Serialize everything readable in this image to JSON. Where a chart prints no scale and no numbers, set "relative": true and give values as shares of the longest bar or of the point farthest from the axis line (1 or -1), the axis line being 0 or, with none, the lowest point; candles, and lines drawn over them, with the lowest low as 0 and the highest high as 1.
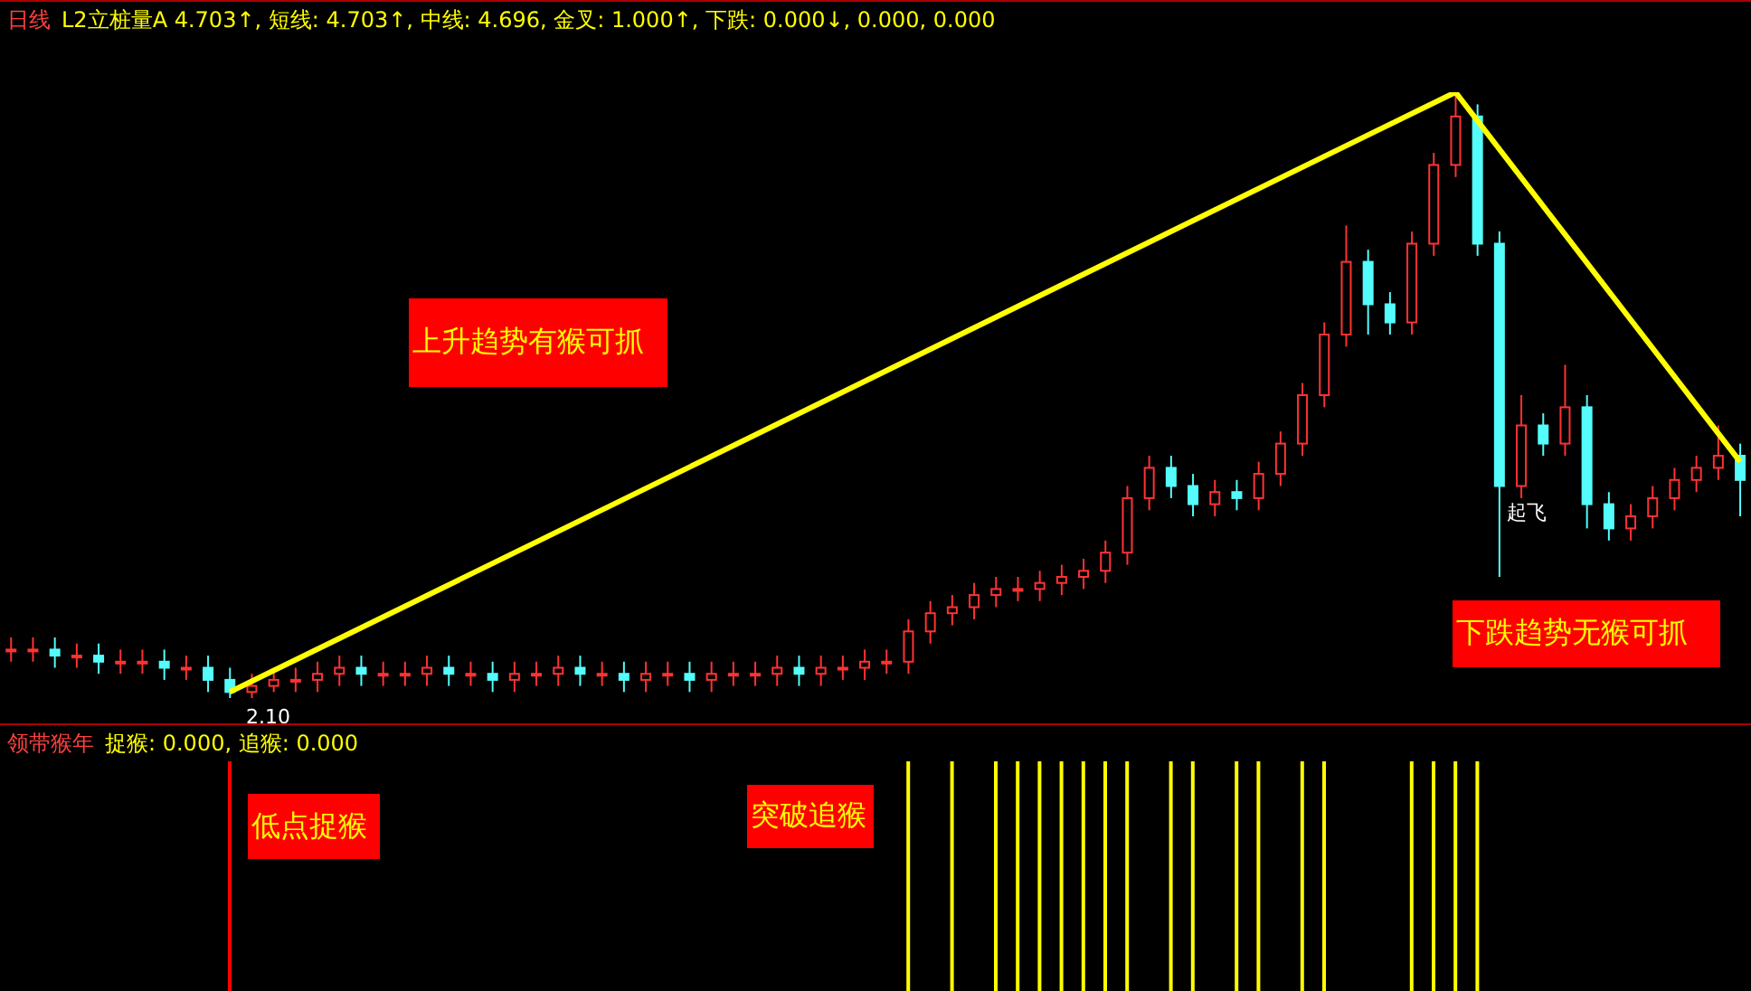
{
  "chart_data": [
    {
      "type": "candlestick",
      "relative": true,
      "title": "日线",
      "subtitle": "L2立桩量A 4.703↑, 短线: 4.703↑, 中线: 4.696, 金叉: 1.000↑, 下跌: 0.000↓, 0.000, 0.000",
      "annotations": [
        "上升趋势有猴可抓",
        "下跌趋势无猴可抓",
        "起飞",
        "2.10"
      ],
      "categories": [
        null,
        null,
        null,
        null,
        null,
        null,
        null,
        null,
        null,
        null,
        null,
        null,
        null,
        null,
        null,
        null,
        null,
        null,
        null,
        null,
        null,
        null,
        null,
        null,
        null,
        null,
        null,
        null,
        null,
        null,
        null,
        null,
        null,
        null,
        null,
        null,
        null,
        null,
        null,
        null,
        null,
        null,
        null,
        null,
        null,
        null,
        null,
        null,
        null,
        null,
        null,
        null,
        null,
        null,
        null,
        null,
        null,
        null,
        null,
        null,
        null,
        null,
        null,
        null,
        null,
        null,
        null,
        null,
        null,
        null,
        null,
        null,
        null,
        null,
        null,
        null,
        null,
        null,
        null,
        null
      ],
      "ohlc": [
        [
          0.08,
          0.1,
          0.06,
          0.08
        ],
        [
          0.08,
          0.1,
          0.06,
          0.08
        ],
        [
          0.08,
          0.1,
          0.05,
          0.07
        ],
        [
          0.07,
          0.09,
          0.05,
          0.07
        ],
        [
          0.07,
          0.09,
          0.04,
          0.06
        ],
        [
          0.06,
          0.08,
          0.04,
          0.06
        ],
        [
          0.06,
          0.08,
          0.04,
          0.06
        ],
        [
          0.06,
          0.08,
          0.03,
          0.05
        ],
        [
          0.05,
          0.07,
          0.03,
          0.05
        ],
        [
          0.05,
          0.07,
          0.01,
          0.03
        ],
        [
          0.03,
          0.05,
          0,
          0.01
        ],
        [
          0.01,
          0.04,
          0,
          0.02
        ],
        [
          0.02,
          0.05,
          0.01,
          0.03
        ],
        [
          0.03,
          0.05,
          0.01,
          0.03
        ],
        [
          0.03,
          0.06,
          0.01,
          0.04
        ],
        [
          0.04,
          0.07,
          0.02,
          0.05
        ],
        [
          0.05,
          0.07,
          0.02,
          0.04
        ],
        [
          0.04,
          0.06,
          0.02,
          0.04
        ],
        [
          0.04,
          0.06,
          0.02,
          0.04
        ],
        [
          0.04,
          0.07,
          0.02,
          0.05
        ],
        [
          0.05,
          0.07,
          0.02,
          0.04
        ],
        [
          0.04,
          0.06,
          0.02,
          0.04
        ],
        [
          0.04,
          0.06,
          0.01,
          0.03
        ],
        [
          0.03,
          0.06,
          0.01,
          0.04
        ],
        [
          0.04,
          0.06,
          0.02,
          0.04
        ],
        [
          0.04,
          0.07,
          0.02,
          0.05
        ],
        [
          0.05,
          0.07,
          0.02,
          0.04
        ],
        [
          0.04,
          0.06,
          0.02,
          0.04
        ],
        [
          0.04,
          0.06,
          0.01,
          0.03
        ],
        [
          0.03,
          0.06,
          0.01,
          0.04
        ],
        [
          0.04,
          0.06,
          0.02,
          0.04
        ],
        [
          0.04,
          0.06,
          0.01,
          0.03
        ],
        [
          0.03,
          0.06,
          0.01,
          0.04
        ],
        [
          0.04,
          0.06,
          0.02,
          0.04
        ],
        [
          0.04,
          0.06,
          0.02,
          0.04
        ],
        [
          0.04,
          0.07,
          0.02,
          0.05
        ],
        [
          0.05,
          0.07,
          0.02,
          0.04
        ],
        [
          0.04,
          0.07,
          0.02,
          0.05
        ],
        [
          0.05,
          0.07,
          0.03,
          0.05
        ],
        [
          0.05,
          0.08,
          0.03,
          0.06
        ],
        [
          0.06,
          0.08,
          0.04,
          0.06
        ],
        [
          0.06,
          0.13,
          0.04,
          0.11
        ],
        [
          0.11,
          0.16,
          0.09,
          0.14
        ],
        [
          0.14,
          0.17,
          0.12,
          0.15
        ],
        [
          0.15,
          0.19,
          0.13,
          0.17
        ],
        [
          0.17,
          0.2,
          0.15,
          0.18
        ],
        [
          0.18,
          0.2,
          0.16,
          0.18
        ],
        [
          0.18,
          0.21,
          0.16,
          0.19
        ],
        [
          0.19,
          0.22,
          0.17,
          0.2
        ],
        [
          0.2,
          0.23,
          0.18,
          0.21
        ],
        [
          0.21,
          0.26,
          0.19,
          0.24
        ],
        [
          0.24,
          0.35,
          0.22,
          0.33
        ],
        [
          0.33,
          0.4,
          0.31,
          0.38
        ],
        [
          0.38,
          0.4,
          0.33,
          0.35
        ],
        [
          0.35,
          0.37,
          0.3,
          0.32
        ],
        [
          0.32,
          0.36,
          0.3,
          0.34
        ],
        [
          0.34,
          0.36,
          0.31,
          0.33
        ],
        [
          0.33,
          0.39,
          0.31,
          0.37
        ],
        [
          0.37,
          0.44,
          0.35,
          0.42
        ],
        [
          0.42,
          0.52,
          0.4,
          0.5
        ],
        [
          0.5,
          0.62,
          0.48,
          0.6
        ],
        [
          0.6,
          0.78,
          0.58,
          0.72
        ],
        [
          0.72,
          0.74,
          0.6,
          0.65
        ],
        [
          0.65,
          0.67,
          0.6,
          0.62
        ],
        [
          0.62,
          0.77,
          0.6,
          0.75
        ],
        [
          0.75,
          0.9,
          0.73,
          0.88
        ],
        [
          0.88,
          1,
          0.86,
          0.96
        ],
        [
          0.96,
          0.98,
          0.73,
          0.75
        ],
        [
          0.75,
          0.77,
          0.2,
          0.35
        ],
        [
          0.35,
          0.5,
          0.33,
          0.45
        ],
        [
          0.45,
          0.47,
          0.4,
          0.42
        ],
        [
          0.42,
          0.55,
          0.4,
          0.48
        ],
        [
          0.48,
          0.5,
          0.28,
          0.32
        ],
        [
          0.32,
          0.34,
          0.26,
          0.28
        ],
        [
          0.28,
          0.32,
          0.26,
          0.3
        ],
        [
          0.3,
          0.35,
          0.28,
          0.33
        ],
        [
          0.33,
          0.38,
          0.31,
          0.36
        ],
        [
          0.36,
          0.4,
          0.34,
          0.38
        ],
        [
          0.38,
          0.45,
          0.36,
          0.4
        ],
        [
          0.4,
          0.42,
          0.3,
          0.36
        ]
      ],
      "colors": [
        "#ff3232",
        "#ff3232",
        "#54fcfc",
        "#ff3232",
        "#54fcfc",
        "#ff3232",
        "#ff3232",
        "#54fcfc",
        "#ff3232",
        "#54fcfc",
        "#54fcfc",
        "#ff3232",
        "#ff3232",
        "#ff3232",
        "#ff3232",
        "#ff3232",
        "#54fcfc",
        "#ff3232",
        "#ff3232",
        "#ff3232",
        "#54fcfc",
        "#ff3232",
        "#54fcfc",
        "#ff3232",
        "#ff3232",
        "#ff3232",
        "#54fcfc",
        "#ff3232",
        "#54fcfc",
        "#ff3232",
        "#ff3232",
        "#54fcfc",
        "#ff3232",
        "#ff3232",
        "#ff3232",
        "#ff3232",
        "#54fcfc",
        "#ff3232",
        "#ff3232",
        "#ff3232",
        "#ff3232",
        "#ff3232",
        "#ff3232",
        "#ff3232",
        "#ff3232",
        "#ff3232",
        "#ff3232",
        "#ff3232",
        "#ff3232",
        "#ff3232",
        "#ff3232",
        "#ff3232",
        "#ff3232",
        "#54fcfc",
        "#54fcfc",
        "#ff3232",
        "#54fcfc",
        "#ff3232",
        "#ff3232",
        "#ff3232",
        "#ff3232",
        "#ff3232",
        "#54fcfc",
        "#54fcfc",
        "#ff3232",
        "#ff3232",
        "#ff3232",
        "#54fcfc",
        "#54fcfc",
        "#ff3232",
        "#54fcfc",
        "#ff3232",
        "#54fcfc",
        "#54fcfc",
        "#ff3232",
        "#ff3232",
        "#ff3232",
        "#ff3232",
        "#ff3232",
        "#54fcfc"
      ],
      "series": [
        {
          "type": "line",
          "color": "#ffff00",
          "values": [
            null,
            null,
            null,
            null,
            null,
            null,
            null,
            null,
            null,
            null,
            0.01,
            null,
            null,
            null,
            null,
            null,
            null,
            null,
            null,
            null,
            null,
            null,
            null,
            null,
            null,
            null,
            null,
            null,
            null,
            null,
            null,
            null,
            null,
            null,
            null,
            null,
            null,
            null,
            null,
            null,
            null,
            null,
            null,
            null,
            null,
            null,
            null,
            null,
            null,
            null,
            null,
            null,
            null,
            null,
            null,
            null,
            null,
            null,
            null,
            null,
            null,
            null,
            null,
            null,
            null,
            null,
            1,
            null,
            null,
            null,
            null,
            null,
            null,
            null,
            null,
            null,
            null,
            null,
            null,
            0.39
          ]
        }
      ]
    },
    {
      "type": "bar",
      "relative": true,
      "title": "领带猴年",
      "subtitle": "捉猴: 0.000, 追猴: 0.000",
      "annotations": [
        "低点捉猴",
        "突破追猴"
      ],
      "categories": [
        null,
        null,
        null,
        null,
        null,
        null,
        null,
        null,
        null,
        null,
        null,
        null,
        null,
        null,
        null,
        null,
        null,
        null,
        null,
        null,
        null,
        null,
        null,
        null,
        null,
        null,
        null,
        null,
        null,
        null,
        null,
        null,
        null,
        null,
        null,
        null,
        null,
        null,
        null,
        null,
        null,
        null,
        null,
        null,
        null,
        null,
        null,
        null,
        null,
        null,
        null,
        null,
        null,
        null,
        null,
        null,
        null,
        null,
        null,
        null,
        null,
        null,
        null,
        null,
        null,
        null,
        null,
        null,
        null,
        null,
        null,
        null,
        null,
        null,
        null,
        null,
        null,
        null,
        null,
        null
      ],
      "values": [
        null,
        null,
        null,
        null,
        null,
        null,
        null,
        null,
        null,
        null,
        1,
        null,
        null,
        null,
        null,
        null,
        null,
        null,
        null,
        null,
        null,
        null,
        null,
        null,
        null,
        null,
        null,
        null,
        null,
        null,
        null,
        null,
        null,
        null,
        null,
        null,
        null,
        null,
        null,
        null,
        null,
        1,
        null,
        1,
        null,
        1,
        1,
        1,
        1,
        1,
        1,
        1,
        null,
        1,
        1,
        null,
        1,
        1,
        null,
        1,
        1,
        null,
        null,
        null,
        1,
        1,
        1,
        1,
        null,
        null,
        null,
        null,
        null,
        null,
        null,
        null,
        null,
        null,
        null,
        null
      ],
      "colors": [
        "#ffff00",
        "#ffff00",
        "#ffff00",
        "#ffff00",
        "#ffff00",
        "#ffff00",
        "#ffff00",
        "#ffff00",
        "#ffff00",
        "#ffff00",
        "#ff0000",
        "#ffff00",
        "#ffff00",
        "#ffff00",
        "#ffff00",
        "#ffff00",
        "#ffff00",
        "#ffff00",
        "#ffff00",
        "#ffff00",
        "#ffff00",
        "#ffff00",
        "#ffff00",
        "#ffff00",
        "#ffff00",
        "#ffff00",
        "#ffff00",
        "#ffff00",
        "#ffff00",
        "#ffff00",
        "#ffff00",
        "#ffff00",
        "#ffff00",
        "#ffff00",
        "#ffff00",
        "#ffff00",
        "#ffff00",
        "#ffff00",
        "#ffff00",
        "#ffff00",
        "#ffff00",
        "#ffff00",
        "#ffff00",
        "#ffff00",
        "#ffff00",
        "#ffff00",
        "#ffff00",
        "#ffff00",
        "#ffff00",
        "#ffff00",
        "#ffff00",
        "#ffff00",
        "#ffff00",
        "#ffff00",
        "#ffff00",
        "#ffff00",
        "#ffff00",
        "#ffff00",
        "#ffff00",
        "#ffff00",
        "#ffff00",
        "#ffff00",
        "#ffff00",
        "#ffff00",
        "#ffff00",
        "#ffff00",
        "#ffff00",
        "#ffff00",
        "#ffff00",
        "#ffff00",
        "#ffff00",
        "#ffff00",
        "#ffff00",
        "#ffff00",
        "#ffff00",
        "#ffff00",
        "#ffff00",
        "#ffff00",
        "#ffff00",
        "#ffff00"
      ]
    }
  ]
}
